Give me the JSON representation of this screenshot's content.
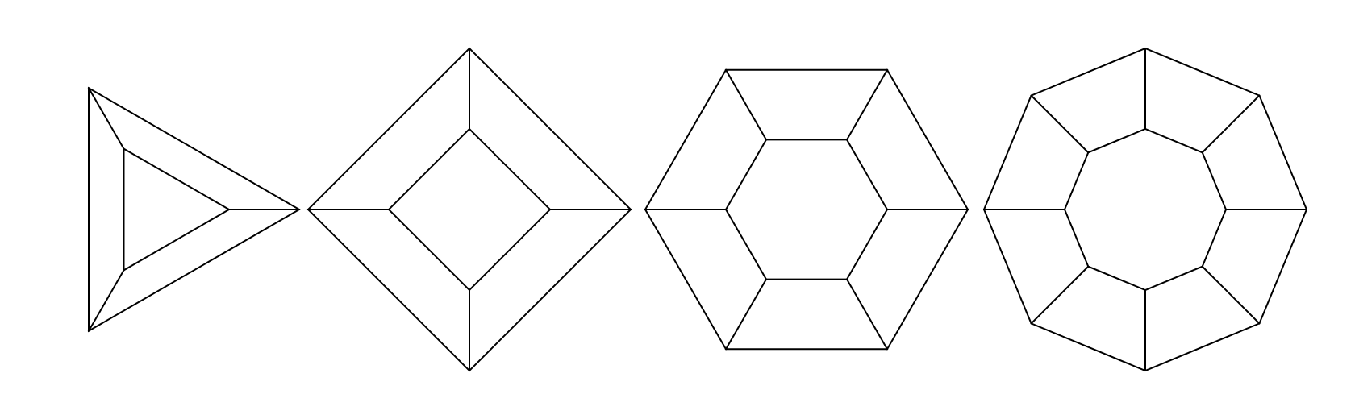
{
  "diagram": {
    "stroke_color": "#000000",
    "background_color": "#ffffff",
    "figures": [
      {
        "name": "triangle",
        "sides": 3,
        "inner_ratio": 0.5,
        "rotation_deg": 0
      },
      {
        "name": "square",
        "sides": 4,
        "inner_ratio": 0.5,
        "rotation_deg": 0
      },
      {
        "name": "hexagon",
        "sides": 6,
        "inner_ratio": 0.5,
        "rotation_deg": 0
      },
      {
        "name": "octagon",
        "sides": 8,
        "inner_ratio": 0.5,
        "rotation_deg": 0
      }
    ]
  }
}
